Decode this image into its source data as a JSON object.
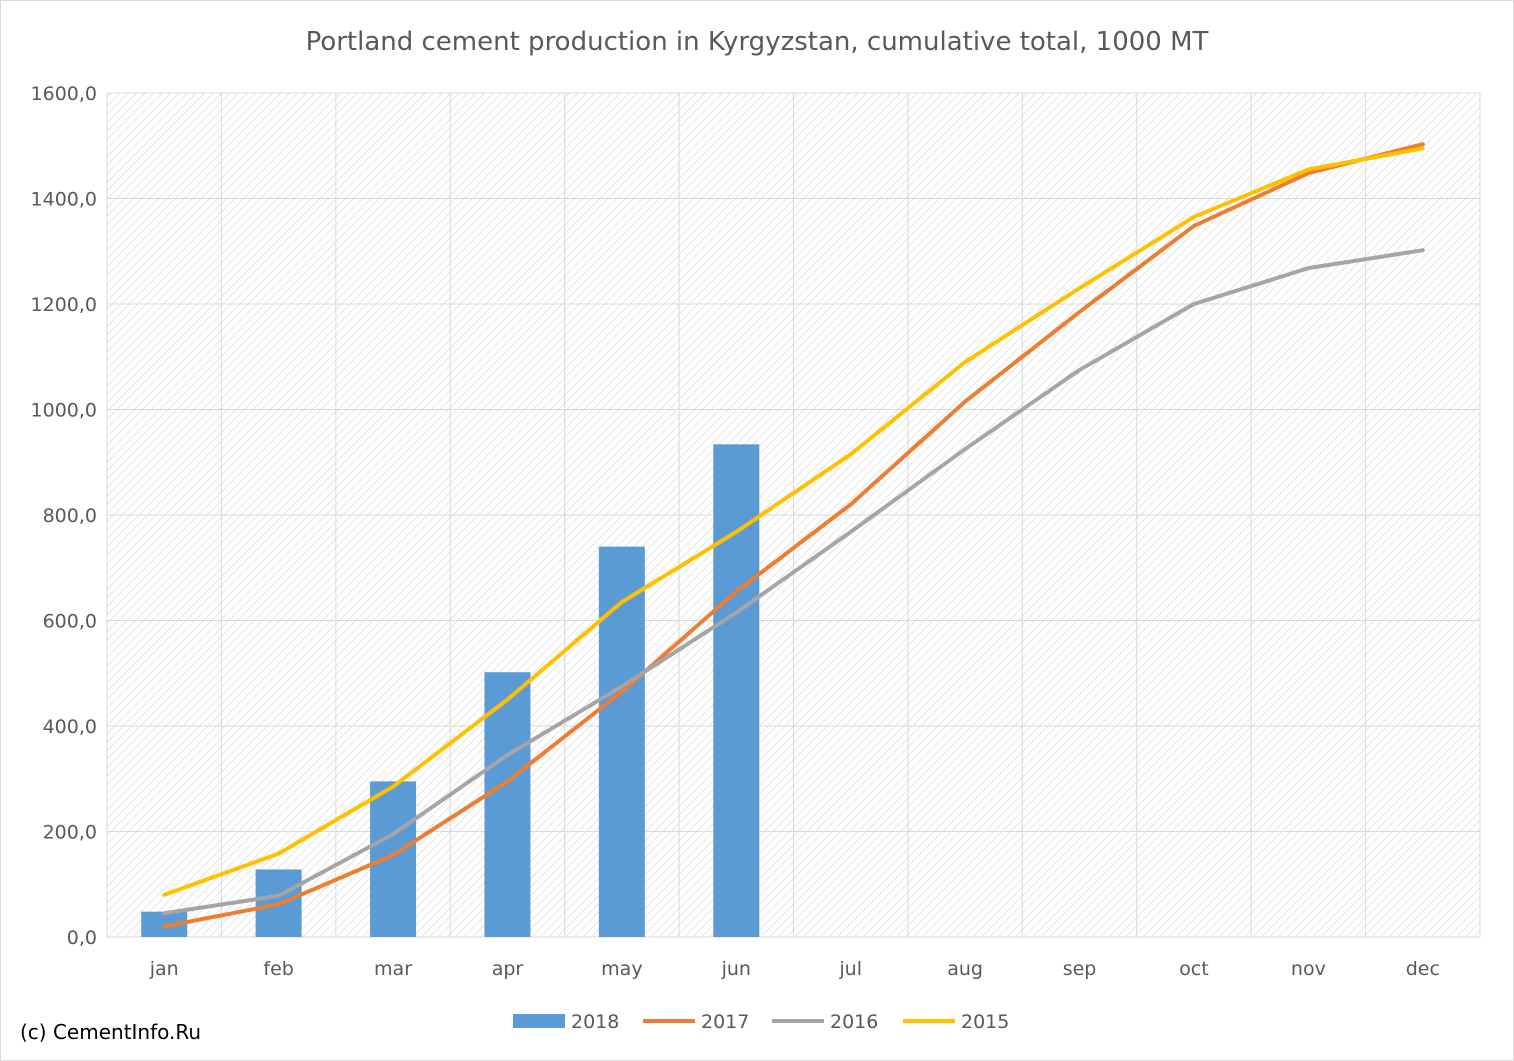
{
  "chart_data": {
    "type": "bar",
    "title": "Portland cement production in Kyrgyzstan, cumulative total, 1000 MT",
    "xlabel": "",
    "ylabel": "",
    "categories": [
      "jan",
      "feb",
      "mar",
      "apr",
      "may",
      "jun",
      "jul",
      "aug",
      "sep",
      "oct",
      "nov",
      "dec"
    ],
    "ylim": [
      0,
      1600
    ],
    "yticks": [
      "0,0",
      "200,0",
      "400,0",
      "600,0",
      "800,0",
      "1000,0",
      "1200,0",
      "1400,0",
      "1600,0"
    ],
    "grid": true,
    "legend_position": "bottom",
    "series": [
      {
        "name": "2018",
        "type": "bar",
        "color": "#5b9bd5",
        "values": [
          48,
          128,
          295,
          502,
          740,
          934,
          null,
          null,
          null,
          null,
          null,
          null
        ]
      },
      {
        "name": "2017",
        "type": "line",
        "color": "#ed7d31",
        "values": [
          20,
          62,
          155,
          295,
          465,
          655,
          820,
          1015,
          1185,
          1348,
          1448,
          1503
        ]
      },
      {
        "name": "2016",
        "type": "line",
        "color": "#a5a5a5",
        "values": [
          45,
          78,
          195,
          345,
          475,
          615,
          768,
          925,
          1075,
          1200,
          1268,
          1302
        ]
      },
      {
        "name": "2015",
        "type": "line",
        "color": "#ffc000",
        "values": [
          80,
          158,
          285,
          450,
          635,
          768,
          915,
          1090,
          1230,
          1365,
          1455,
          1495
        ]
      }
    ]
  },
  "credit": "(c) CementInfo.Ru"
}
